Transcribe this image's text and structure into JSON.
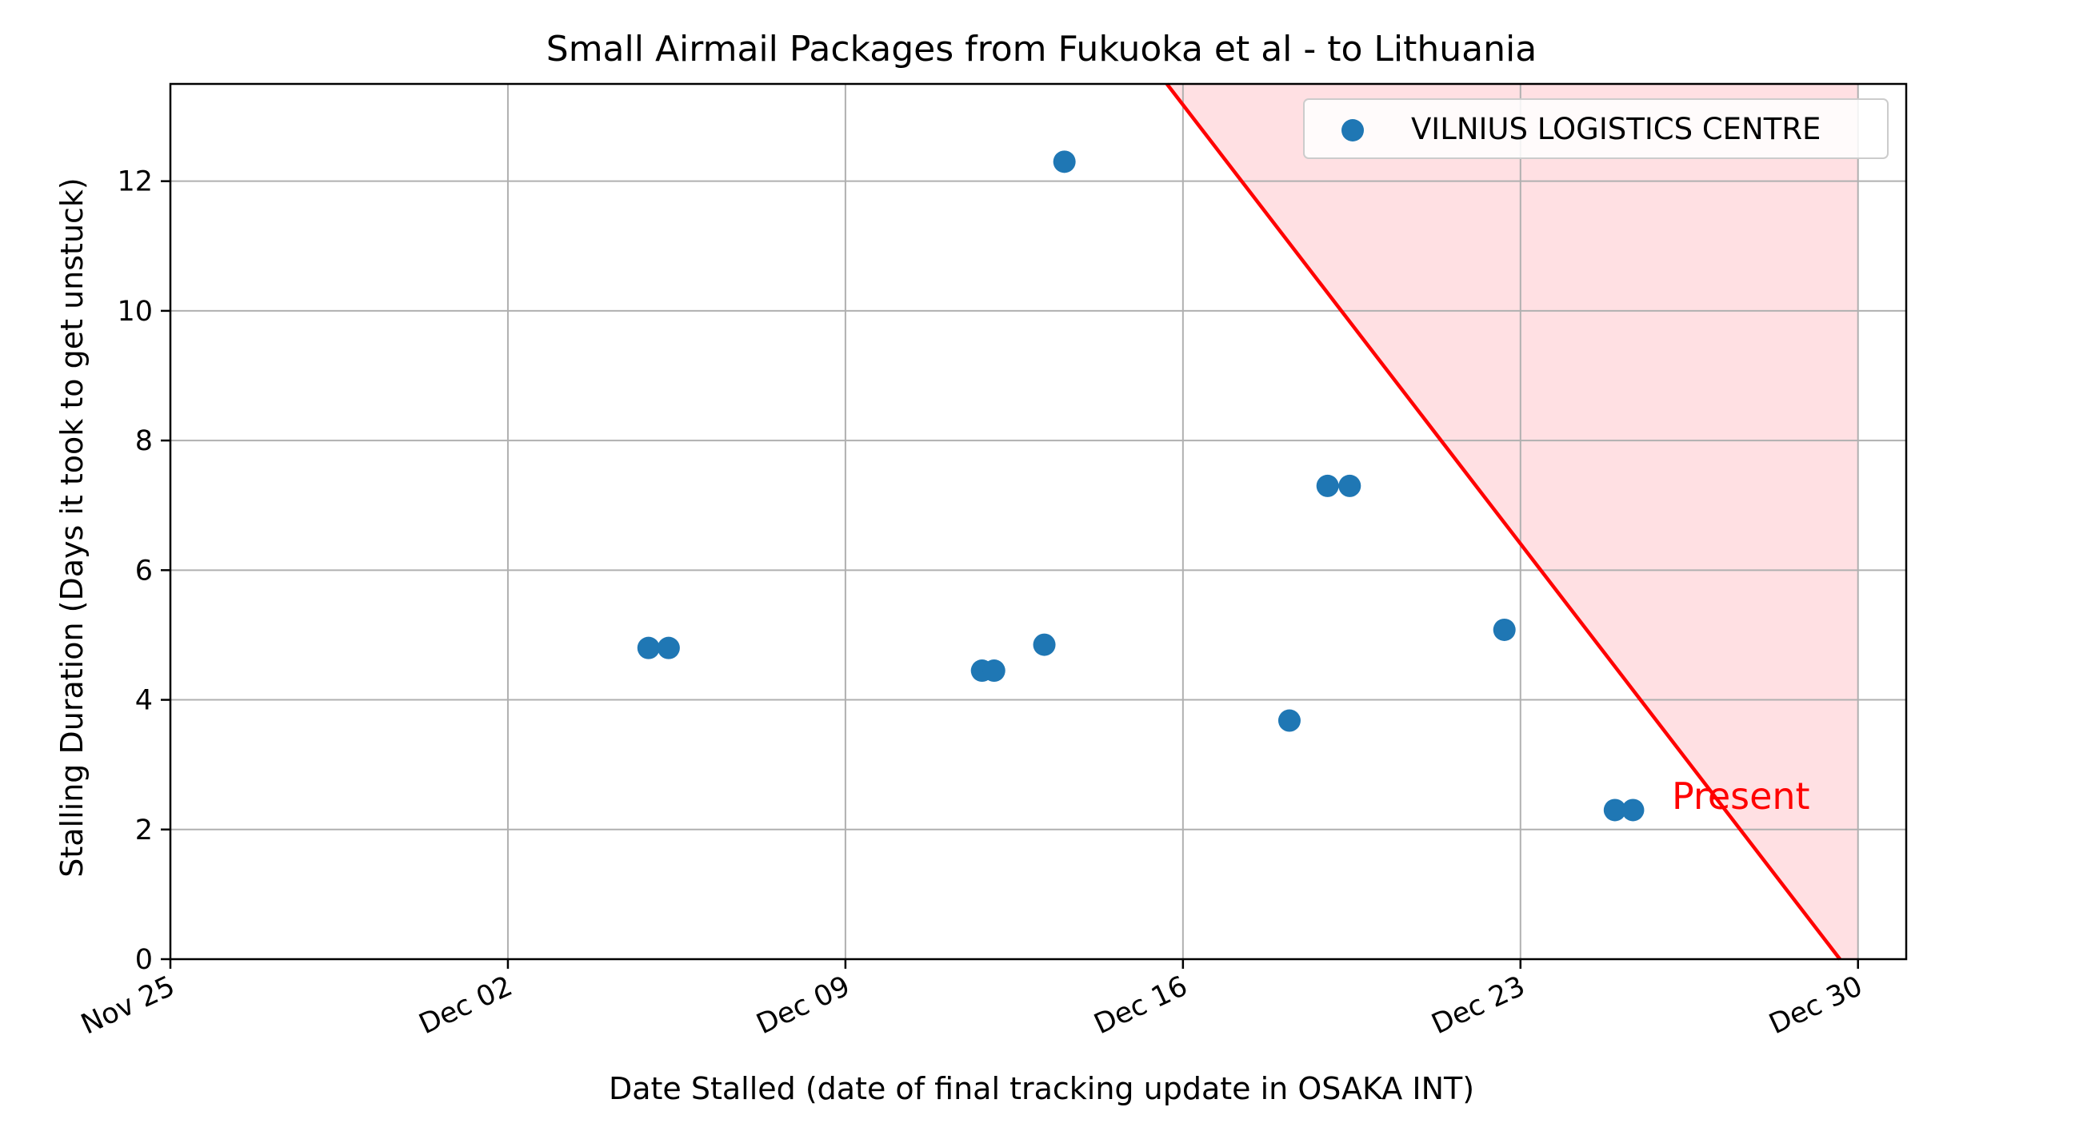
{
  "chart_data": {
    "type": "scatter",
    "title": "Small Airmail Packages from Fukuoka et al - to Lithuania",
    "xlabel": "Date Stalled (date of final tracking update in OSAKA INT)",
    "ylabel": "Stalling Duration (Days it took to get unstuck)",
    "x_axis_type": "date",
    "xlim": [
      "Nov 25",
      "Dec 31"
    ],
    "ylim": [
      0,
      13.5
    ],
    "xticks": [
      {
        "date": "Nov 25",
        "label": "Nov 25"
      },
      {
        "date": "Dec 02",
        "label": "Dec 02"
      },
      {
        "date": "Dec 09",
        "label": "Dec 09"
      },
      {
        "date": "Dec 16",
        "label": "Dec 16"
      },
      {
        "date": "Dec 23",
        "label": "Dec 23"
      },
      {
        "date": "Dec 30",
        "label": "Dec 30"
      }
    ],
    "yticks": [
      0,
      2,
      4,
      6,
      8,
      10,
      12
    ],
    "grid": true,
    "legend_position": "top-right",
    "series": [
      {
        "name": "VILNIUS LOGISTICS CENTRE",
        "color": "#1f77b4",
        "points": [
          {
            "x": "Dec 04 22:00",
            "y": 4.8
          },
          {
            "x": "Dec 05 08:00",
            "y": 4.8
          },
          {
            "x": "Dec 11 20:00",
            "y": 4.45
          },
          {
            "x": "Dec 12 02:00",
            "y": 4.45
          },
          {
            "x": "Dec 13 03:00",
            "y": 4.85
          },
          {
            "x": "Dec 13 13:00",
            "y": 12.3
          },
          {
            "x": "Dec 18 05:00",
            "y": 3.68
          },
          {
            "x": "Dec 19 00:00",
            "y": 7.3
          },
          {
            "x": "Dec 19 11:00",
            "y": 7.3
          },
          {
            "x": "Dec 22 16:00",
            "y": 5.08
          },
          {
            "x": "Dec 24 23:00",
            "y": 2.3
          },
          {
            "x": "Dec 25 08:00",
            "y": 2.3
          }
        ]
      }
    ],
    "reference_line": {
      "label": "Present",
      "color": "#ff0000",
      "fill_color": "#ffe0e3",
      "from": {
        "x": "Dec 15 16:00",
        "y": 13.5
      },
      "to": {
        "x": "Dec 29 15:00",
        "y": 0
      },
      "shade_until": "Dec 30"
    }
  }
}
